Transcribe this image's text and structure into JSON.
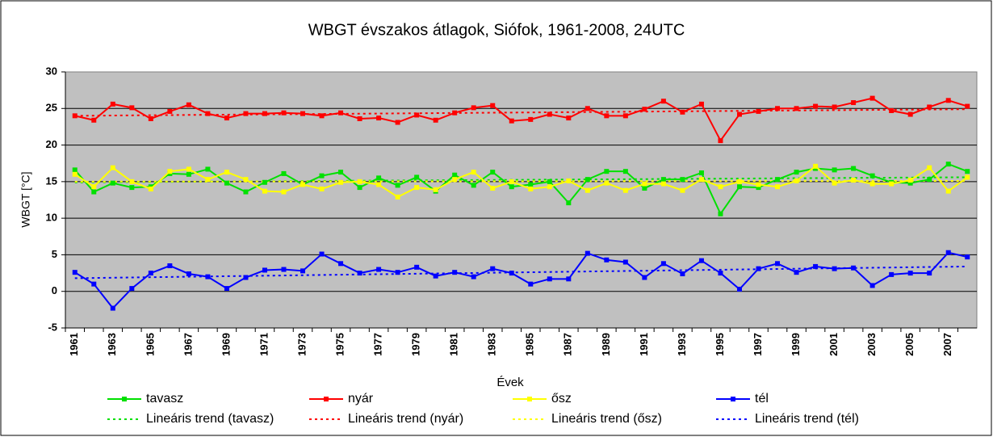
{
  "chart_data": {
    "type": "line",
    "title": "WBGT évszakos átlagok, Siófok, 1961-2008, 24UTC",
    "x_label": "Évek",
    "y_label": "WBGT [°C]",
    "categories": [
      "1961",
      null,
      "1963",
      null,
      "1965",
      null,
      "1967",
      null,
      "1969",
      null,
      "1971",
      null,
      "1973",
      null,
      "1975",
      null,
      "1977",
      null,
      "1979",
      null,
      "1981",
      null,
      "1983",
      null,
      "1985",
      null,
      "1987",
      null,
      "1989",
      null,
      "1991",
      null,
      "1993",
      null,
      "1995",
      null,
      "1997",
      null,
      "1999",
      null,
      "2001",
      null,
      "2003",
      null,
      "2005",
      null,
      "2007",
      null
    ],
    "ylim": [
      -5,
      30
    ],
    "yticks": [
      -5,
      0,
      5,
      10,
      15,
      20,
      25,
      30
    ],
    "grid": true,
    "series": [
      {
        "name": "tavasz",
        "color": "#00e000",
        "values": [
          16.6,
          13.6,
          14.8,
          14.2,
          14.3,
          16.1,
          16.0,
          16.7,
          14.8,
          13.6,
          14.9,
          16.1,
          14.6,
          15.8,
          16.3,
          14.2,
          15.5,
          14.5,
          15.6,
          13.7,
          15.9,
          14.5,
          16.3,
          14.3,
          14.6,
          15.0,
          12.1,
          15.3,
          16.4,
          16.4,
          14.1,
          15.3,
          15.3,
          16.2,
          10.6,
          14.3,
          14.2,
          15.3,
          16.3,
          16.8,
          16.6,
          16.8,
          15.8,
          14.9,
          14.8,
          15.3,
          17.4,
          16.4
        ]
      },
      {
        "name": "nyár",
        "color": "#ff0000",
        "values": [
          24.0,
          23.4,
          25.6,
          25.1,
          23.6,
          24.6,
          25.5,
          24.3,
          23.7,
          24.3,
          24.3,
          24.4,
          24.3,
          24.0,
          24.4,
          23.6,
          23.7,
          23.1,
          24.1,
          23.4,
          24.4,
          25.1,
          25.4,
          23.3,
          23.5,
          24.2,
          23.7,
          25.0,
          24.0,
          24.0,
          24.9,
          26.0,
          24.5,
          25.6,
          20.6,
          24.2,
          24.6,
          25.0,
          25.0,
          25.3,
          25.2,
          25.8,
          26.4,
          24.7,
          24.2,
          25.2,
          26.1,
          25.3
        ]
      },
      {
        "name": "ősz",
        "color": "#ffff00",
        "values": [
          16.0,
          14.3,
          16.9,
          15.0,
          14.0,
          16.4,
          16.7,
          15.3,
          16.3,
          15.3,
          13.7,
          13.6,
          14.6,
          14.0,
          14.9,
          15.0,
          14.6,
          12.9,
          14.2,
          13.9,
          15.3,
          16.3,
          14.1,
          15.0,
          14.0,
          14.3,
          15.1,
          13.8,
          14.8,
          13.8,
          14.7,
          14.7,
          13.8,
          15.3,
          14.3,
          15.0,
          14.6,
          14.3,
          15.1,
          17.1,
          14.8,
          15.2,
          14.7,
          14.7,
          15.2,
          16.9,
          13.7,
          15.6
        ]
      },
      {
        "name": "tél",
        "color": "#0000ff",
        "values": [
          2.6,
          1.0,
          -2.3,
          0.4,
          2.5,
          3.5,
          2.4,
          2.0,
          0.4,
          1.9,
          2.9,
          3.0,
          2.8,
          5.1,
          3.8,
          2.5,
          3.0,
          2.6,
          3.3,
          2.1,
          2.6,
          2.0,
          3.1,
          2.5,
          1.0,
          1.7,
          1.7,
          5.2,
          4.3,
          4.0,
          1.9,
          3.8,
          2.4,
          4.2,
          2.5,
          0.3,
          3.1,
          3.8,
          2.6,
          3.4,
          3.1,
          3.2,
          0.8,
          2.3,
          2.5,
          2.5,
          5.3,
          4.7
        ]
      }
    ],
    "trends": [
      {
        "name": "Lineáris trend (tavasz)",
        "color": "#00e000",
        "values": [
          14.9,
          15.6
        ]
      },
      {
        "name": "Lineáris trend (nyár)",
        "color": "#ff0000",
        "values": [
          24.0,
          24.9
        ]
      },
      {
        "name": "Lineáris trend (ősz)",
        "color": "#ffff00",
        "values": [
          15.0,
          15.1
        ]
      },
      {
        "name": "Lineáris trend (tél)",
        "color": "#0000ff",
        "values": [
          1.8,
          3.4
        ]
      }
    ]
  }
}
